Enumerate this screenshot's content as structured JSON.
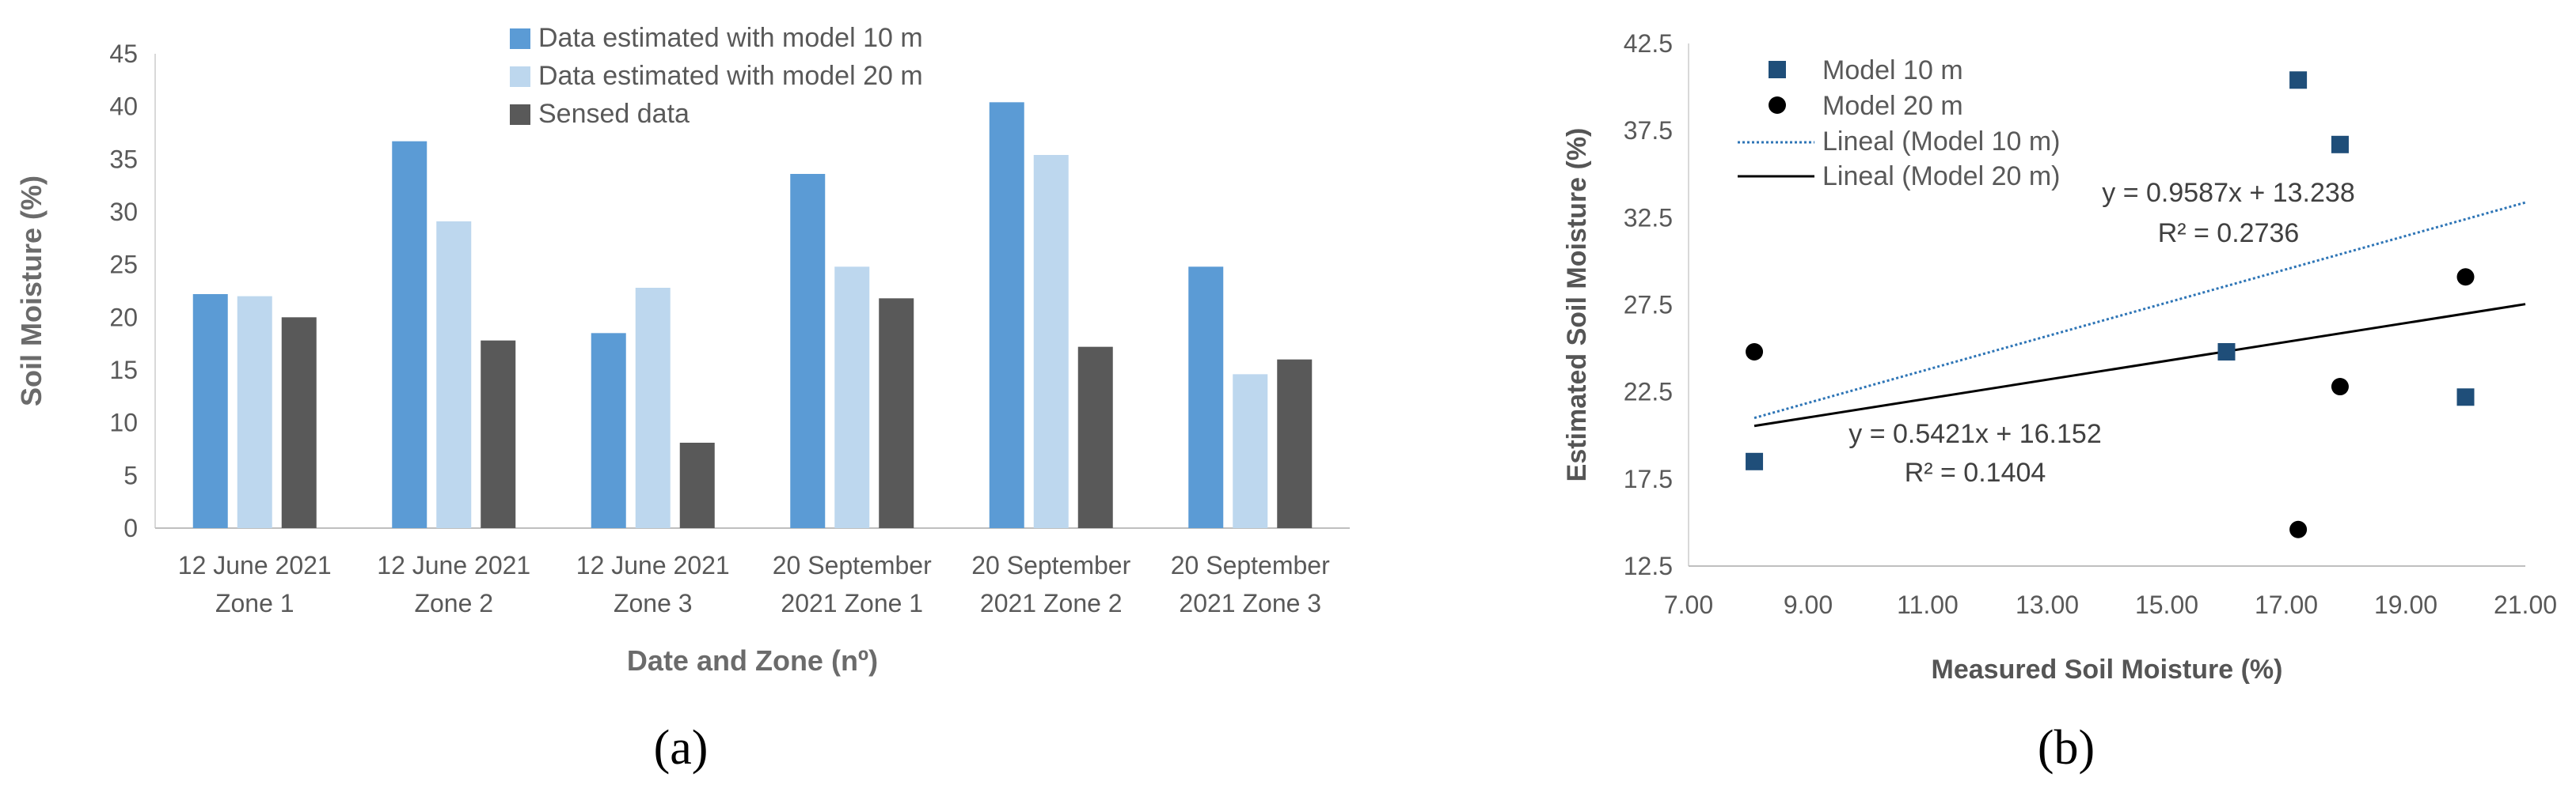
{
  "chart_data": [
    {
      "type": "bar",
      "panel_label": "(a)",
      "xlabel": "Date and Zone (nº)",
      "ylabel": "Soil Moisture (%)",
      "ylim": [
        0,
        45
      ],
      "yticks": [
        "0",
        "5",
        "10",
        "15",
        "20",
        "25",
        "30",
        "35",
        "40",
        "45"
      ],
      "categories": [
        [
          "12 June 2021",
          "Zone 1"
        ],
        [
          "12 June 2021",
          "Zone 2"
        ],
        [
          "12 June 2021",
          "Zone 3"
        ],
        [
          "20 September",
          "2021 Zone 1"
        ],
        [
          "20 September",
          "2021 Zone 2"
        ],
        [
          "20 September",
          "2021 Zone 3"
        ]
      ],
      "series": [
        {
          "name": "Data estimated with model 10 m",
          "color": "#5b9bd5",
          "values": [
            22.2,
            36.7,
            18.5,
            33.6,
            40.4,
            24.8
          ]
        },
        {
          "name": "Data estimated with model 20 m",
          "color": "#bdd7ee",
          "values": [
            22.0,
            29.1,
            22.8,
            24.8,
            35.4,
            14.6
          ]
        },
        {
          "name": "Sensed data",
          "color": "#595959",
          "values": [
            20.0,
            17.8,
            8.1,
            21.8,
            17.2,
            16.0
          ]
        }
      ],
      "grid": false,
      "legend_position": "top-center"
    },
    {
      "type": "scatter",
      "panel_label": "(b)",
      "xlabel": "Measured Soil Moisture (%)",
      "ylabel": "Estimated Soil Moisture (%)",
      "xlim": [
        7,
        21
      ],
      "ylim": [
        12.5,
        42.5
      ],
      "xticks": [
        "7.00",
        "9.00",
        "11.00",
        "13.00",
        "15.00",
        "17.00",
        "19.00",
        "21.00"
      ],
      "yticks": [
        "12.5",
        "17.5",
        "22.5",
        "27.5",
        "32.5",
        "37.5",
        "42.5"
      ],
      "series": [
        {
          "name": "Model 10 m",
          "marker": "square",
          "color": "#1f4e79",
          "points": [
            [
              8.1,
              18.5
            ],
            [
              16.0,
              24.8
            ],
            [
              17.2,
              40.4
            ],
            [
              17.9,
              36.7
            ],
            [
              20.0,
              22.2
            ]
          ]
        },
        {
          "name": "Model 20 m",
          "marker": "circle",
          "color": "#000000",
          "points": [
            [
              8.1,
              24.8
            ],
            [
              17.2,
              14.6
            ],
            [
              17.9,
              22.8
            ],
            [
              20.0,
              29.1
            ]
          ]
        }
      ],
      "trendlines": [
        {
          "name": "Lineal (Model 10 m)",
          "slope": 0.9587,
          "intercept": 13.238,
          "x_range": [
            8.1,
            21
          ],
          "style": "dotted",
          "color": "#2e75b6",
          "equation": "y = 0.9587x + 13.238",
          "r2": "R² = 0.2736"
        },
        {
          "name": "Lineal (Model 20 m)",
          "slope": 0.5421,
          "intercept": 16.152,
          "x_range": [
            8.1,
            21
          ],
          "style": "solid",
          "color": "#000000",
          "equation": "y = 0.5421x + 16.152",
          "r2": "R² = 0.1404"
        }
      ],
      "grid": false,
      "legend_position": "top-left"
    }
  ]
}
